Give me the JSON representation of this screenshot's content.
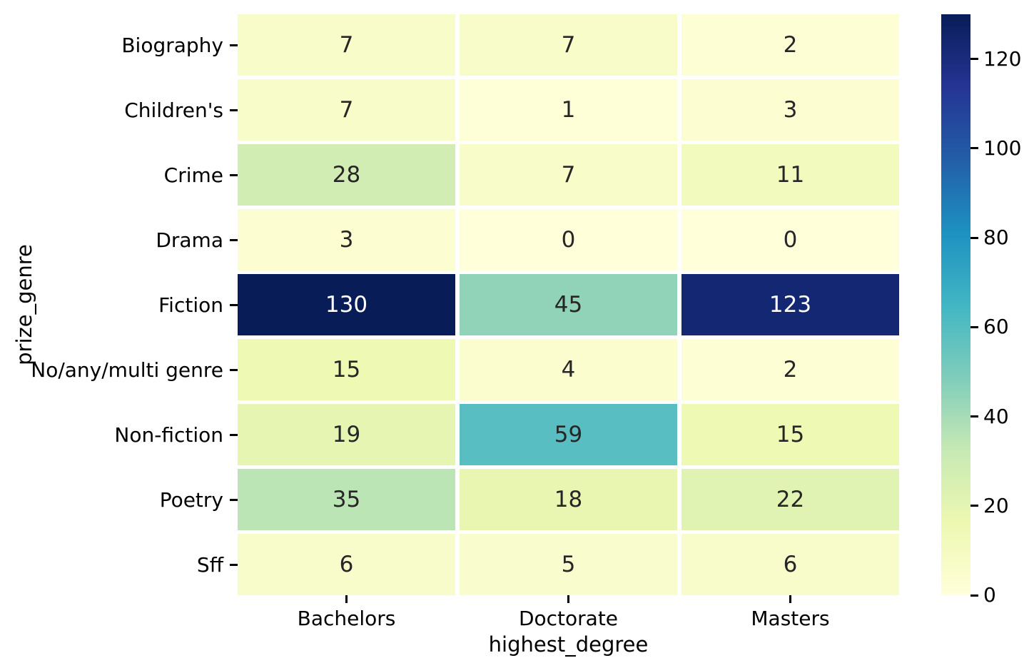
{
  "chart_data": {
    "type": "heatmap",
    "xlabel": "highest_degree",
    "ylabel": "prize_genre",
    "columns": [
      "Bachelors",
      "Doctorate",
      "Masters"
    ],
    "rows": [
      "Biography",
      "Children's",
      "Crime",
      "Drama",
      "Fiction",
      "No/any/multi genre",
      "Non-fiction",
      "Poetry",
      "Sff"
    ],
    "values": [
      [
        7,
        7,
        2
      ],
      [
        7,
        1,
        3
      ],
      [
        28,
        7,
        11
      ],
      [
        3,
        0,
        0
      ],
      [
        130,
        45,
        123
      ],
      [
        15,
        4,
        2
      ],
      [
        19,
        59,
        15
      ],
      [
        35,
        18,
        22
      ],
      [
        6,
        5,
        6
      ]
    ],
    "vmin": 0,
    "vmax": 130,
    "colorbar_ticks": [
      0,
      20,
      40,
      60,
      80,
      100,
      120
    ],
    "colormap": {
      "name": "YlGnBu",
      "stops": [
        {
          "pos": 0.0,
          "color": "#ffffd9"
        },
        {
          "pos": 0.125,
          "color": "#edf8b1"
        },
        {
          "pos": 0.25,
          "color": "#c7e9b4"
        },
        {
          "pos": 0.375,
          "color": "#7fcdbb"
        },
        {
          "pos": 0.5,
          "color": "#41b6c4"
        },
        {
          "pos": 0.625,
          "color": "#1d91c0"
        },
        {
          "pos": 0.75,
          "color": "#225ea8"
        },
        {
          "pos": 0.875,
          "color": "#253494"
        },
        {
          "pos": 1.0,
          "color": "#081d58"
        }
      ]
    },
    "annotation_text_dark": "#262626",
    "annotation_text_light": "#ffffff",
    "background": "#ffffff",
    "grid": false,
    "legend_position": "right-colorbar",
    "axis_text_color": "#000000"
  }
}
